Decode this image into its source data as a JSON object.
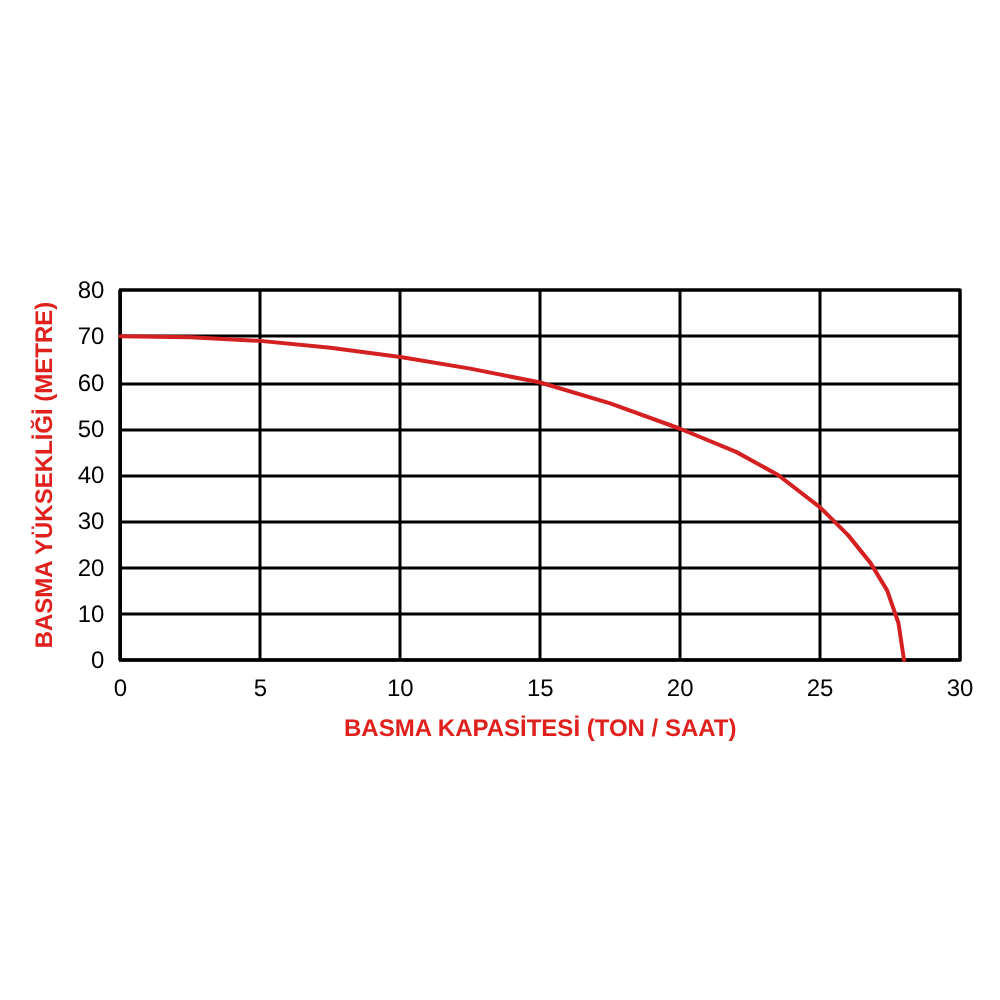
{
  "chart_data": {
    "type": "line",
    "xlabel": "BASMA KAPASİTESİ (TON / SAAT)",
    "ylabel": "BASMA YÜKSEKLİĞİ (METRE)",
    "series": [
      {
        "color": "#d42020",
        "x": [
          0,
          2.5,
          5,
          7.5,
          10,
          12.5,
          15,
          17.5,
          20,
          22,
          23.5,
          25,
          26,
          26.8,
          27.4,
          27.8,
          28
        ],
        "values": [
          70,
          69.8,
          69,
          67.5,
          65.5,
          63,
          60,
          55.5,
          50,
          45,
          40,
          33,
          27,
          21,
          15,
          8,
          0
        ]
      }
    ],
    "xlim": [
      0,
      30
    ],
    "xticks": [
      0,
      5,
      10,
      15,
      20,
      25,
      30
    ],
    "ylim": [
      0,
      80
    ],
    "yticks": [
      0,
      10,
      20,
      30,
      40,
      50,
      60,
      70,
      80
    ],
    "grid": true,
    "marker": "none",
    "line_style": "solid"
  }
}
